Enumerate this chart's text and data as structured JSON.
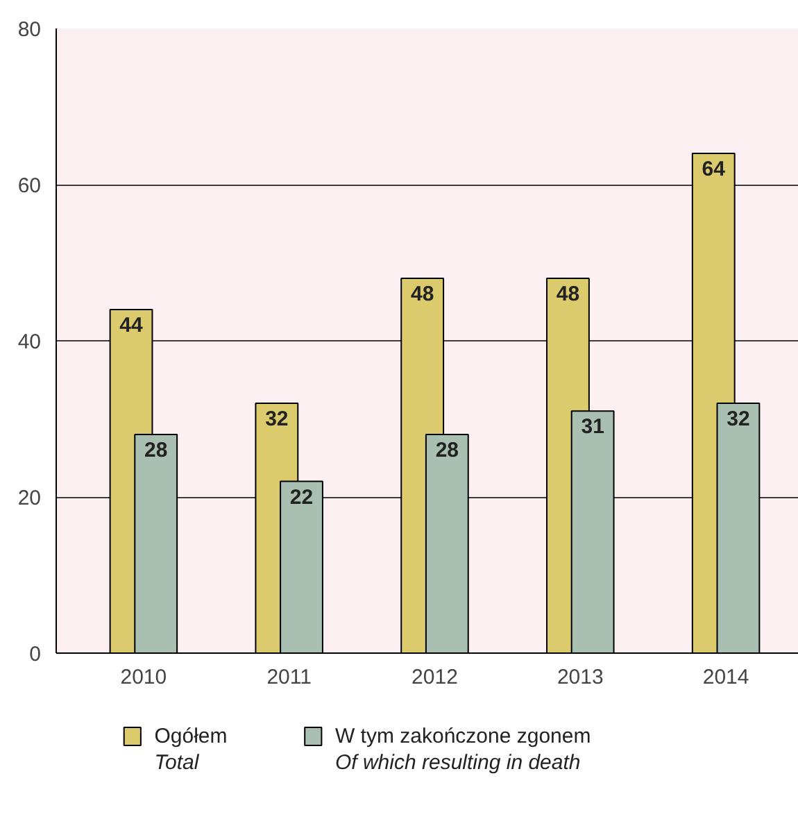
{
  "chart_data": {
    "type": "bar",
    "categories": [
      "2010",
      "2011",
      "2012",
      "2013",
      "2014"
    ],
    "series": [
      {
        "name": "Ogółem\nTotal",
        "color": "#dccb6c",
        "values": [
          44,
          32,
          48,
          48,
          64
        ]
      },
      {
        "name": "W tym zakończone zgonem\nOf which resulting in death",
        "color": "#a8bfb1",
        "values": [
          28,
          22,
          28,
          31,
          32
        ]
      }
    ],
    "ylim": [
      0,
      80
    ],
    "yticks": [
      0,
      20,
      40,
      60,
      80
    ],
    "grid": "y",
    "data_labels": true,
    "legend": "bottom"
  }
}
